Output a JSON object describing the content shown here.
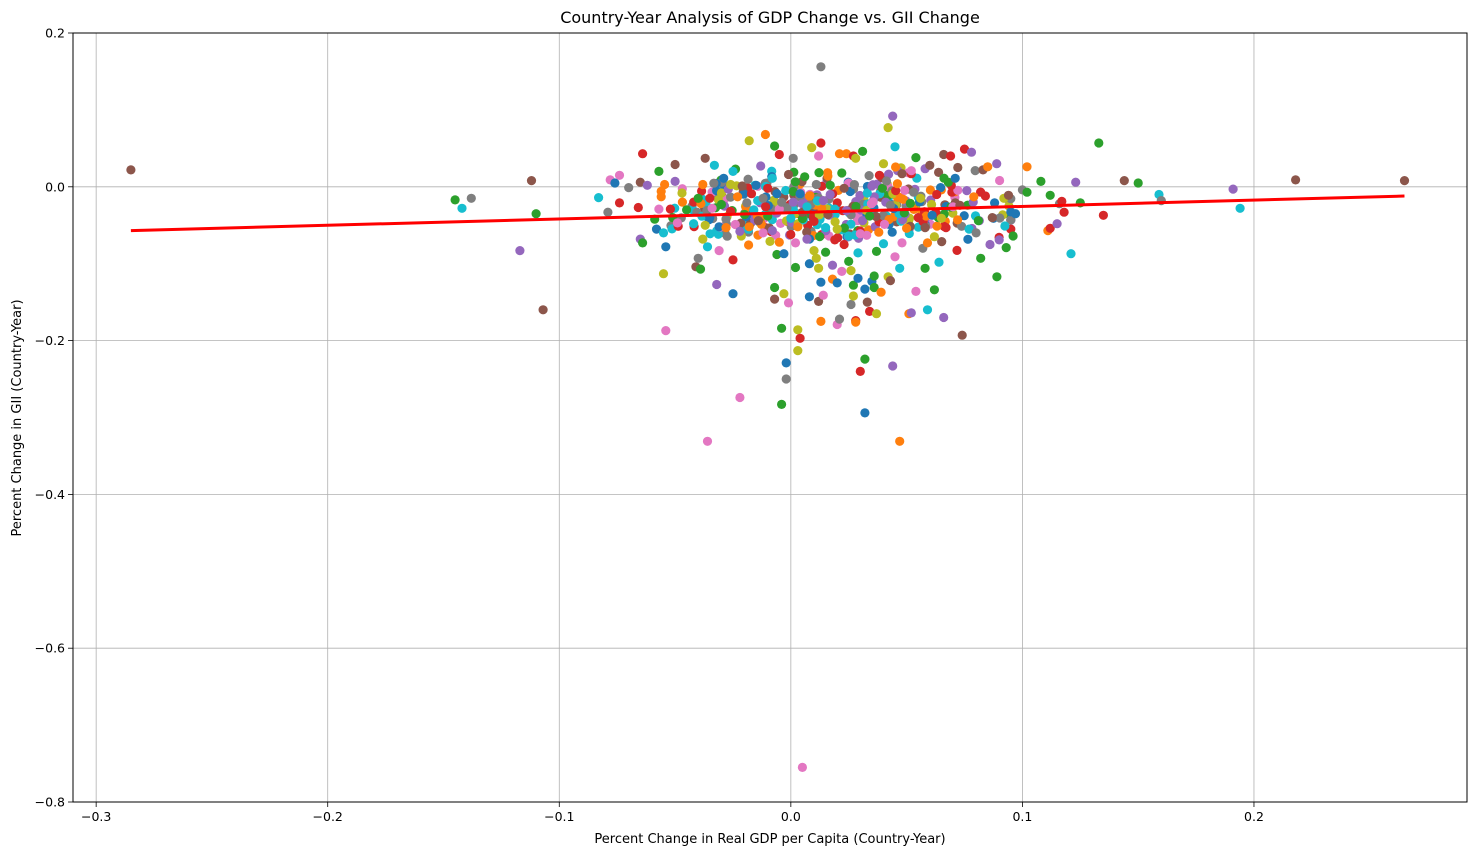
{
  "chart_data": {
    "type": "scatter",
    "title": "Country-Year Analysis of GDP Change vs. GII Change",
    "xlabel": "Percent Change in Real GDP per Capita (Country-Year)",
    "ylabel": "Percent Change in GII (Country-Year)",
    "xlim": [
      -0.31,
      0.292
    ],
    "ylim": [
      -0.8,
      0.2
    ],
    "xticks": [
      -0.3,
      -0.2,
      -0.1,
      0.0,
      0.1,
      0.2
    ],
    "xtick_labels": [
      "−0.3",
      "−0.2",
      "−0.1",
      "0.0",
      "0.1",
      "0.2"
    ],
    "yticks": [
      -0.8,
      -0.6,
      -0.4,
      -0.2,
      0.0,
      0.2
    ],
    "ytick_labels": [
      "−0.8",
      "−0.6",
      "−0.4",
      "−0.2",
      "0.0",
      "0.2"
    ],
    "grid": true,
    "palette": [
      "#1f77b4",
      "#ff7f0e",
      "#2ca02c",
      "#d62728",
      "#9467bd",
      "#8c564b",
      "#e377c2",
      "#7f7f7f",
      "#bcbd22",
      "#17becf"
    ],
    "trend_line": {
      "x": [
        -0.285,
        0.265
      ],
      "y": [
        -0.057,
        -0.012
      ],
      "color": "#ff0000"
    },
    "points": [
      [
        -0.285,
        0.022,
        5
      ],
      [
        -0.145,
        -0.017,
        2
      ],
      [
        -0.142,
        -0.028,
        9
      ],
      [
        -0.138,
        -0.015,
        7
      ],
      [
        -0.117,
        -0.083,
        4
      ],
      [
        -0.112,
        0.008,
        5
      ],
      [
        -0.11,
        -0.035,
        2
      ],
      [
        -0.107,
        -0.16,
        5
      ],
      [
        -0.083,
        -0.014,
        9
      ],
      [
        -0.079,
        -0.033,
        7
      ],
      [
        -0.078,
        0.009,
        6
      ],
      [
        -0.076,
        0.005,
        0
      ],
      [
        -0.074,
        0.015,
        6
      ],
      [
        -0.074,
        -0.021,
        3
      ],
      [
        -0.07,
        -0.001,
        7
      ],
      [
        -0.065,
        -0.068,
        4
      ],
      [
        -0.065,
        0.006,
        5
      ],
      [
        -0.064,
        -0.073,
        2
      ],
      [
        -0.064,
        0.043,
        3
      ],
      [
        -0.062,
        0.002,
        4
      ],
      [
        -0.058,
        -0.055,
        0
      ],
      [
        -0.057,
        -0.029,
        6
      ],
      [
        -0.057,
        0.02,
        2
      ],
      [
        -0.056,
        -0.006,
        1
      ],
      [
        -0.056,
        -0.013,
        1
      ],
      [
        -0.055,
        -0.06,
        9
      ],
      [
        -0.055,
        -0.113,
        8
      ],
      [
        -0.054,
        -0.187,
        6
      ],
      [
        -0.054,
        -0.078,
        0
      ],
      [
        -0.052,
        -0.029,
        3
      ],
      [
        -0.051,
        -0.04,
        2
      ],
      [
        -0.05,
        0.007,
        4
      ],
      [
        -0.05,
        0.029,
        5
      ],
      [
        -0.049,
        -0.047,
        6
      ],
      [
        -0.047,
        -0.008,
        8
      ],
      [
        -0.045,
        -0.03,
        2
      ],
      [
        -0.042,
        -0.048,
        9
      ],
      [
        -0.041,
        -0.104,
        5
      ],
      [
        -0.04,
        -0.093,
        7
      ],
      [
        -0.04,
        -0.015,
        2
      ],
      [
        -0.039,
        -0.107,
        2
      ],
      [
        -0.038,
        -0.068,
        8
      ],
      [
        -0.038,
        0.003,
        1
      ],
      [
        -0.037,
        0.037,
        5
      ],
      [
        -0.037,
        -0.05,
        8
      ],
      [
        -0.036,
        -0.078,
        9
      ],
      [
        -0.036,
        -0.331,
        6
      ],
      [
        -0.035,
        -0.04,
        0
      ],
      [
        -0.035,
        -0.015,
        3
      ],
      [
        -0.034,
        -0.028,
        6
      ],
      [
        -0.033,
        0.028,
        9
      ],
      [
        -0.032,
        -0.127,
        4
      ],
      [
        -0.031,
        -0.083,
        6
      ],
      [
        -0.031,
        -0.052,
        0
      ],
      [
        -0.03,
        -0.023,
        2
      ],
      [
        -0.03,
        -0.008,
        8
      ],
      [
        -0.029,
        0.011,
        0
      ],
      [
        -0.028,
        -0.042,
        7
      ],
      [
        -0.028,
        -0.053,
        1
      ],
      [
        -0.027,
        -0.003,
        4
      ],
      [
        -0.026,
        -0.032,
        3
      ],
      [
        -0.026,
        0.003,
        8
      ],
      [
        -0.025,
        0.02,
        9
      ],
      [
        -0.025,
        -0.139,
        0
      ],
      [
        -0.025,
        -0.095,
        3
      ],
      [
        -0.024,
        -0.049,
        6
      ],
      [
        -0.023,
        -0.013,
        1
      ],
      [
        -0.022,
        -0.274,
        6
      ],
      [
        -0.022,
        -0.058,
        4
      ],
      [
        -0.021,
        0.001,
        5
      ],
      [
        -0.02,
        -0.036,
        2
      ],
      [
        -0.019,
        -0.021,
        7
      ],
      [
        -0.018,
        0.06,
        8
      ],
      [
        -0.018,
        -0.052,
        1
      ],
      [
        -0.017,
        -0.009,
        3
      ],
      [
        -0.016,
        -0.03,
        9
      ],
      [
        -0.015,
        0.002,
        0
      ],
      [
        -0.014,
        -0.044,
        5
      ],
      [
        -0.013,
        0.027,
        4
      ],
      [
        -0.012,
        -0.06,
        6
      ],
      [
        -0.012,
        -0.015,
        7
      ],
      [
        -0.011,
        0.068,
        1
      ],
      [
        -0.01,
        -0.038,
        2
      ],
      [
        -0.01,
        -0.002,
        3
      ],
      [
        -0.009,
        -0.071,
        8
      ],
      [
        -0.008,
        0.011,
        9
      ],
      [
        -0.008,
        -0.057,
        4
      ],
      [
        -0.007,
        -0.131,
        2
      ],
      [
        -0.007,
        -0.146,
        5
      ],
      [
        -0.007,
        0.053,
        2
      ],
      [
        -0.006,
        -0.009,
        0
      ],
      [
        -0.006,
        -0.088,
        2
      ],
      [
        -0.005,
        -0.072,
        1
      ],
      [
        -0.005,
        0.042,
        3
      ],
      [
        -0.005,
        -0.029,
        6
      ],
      [
        -0.004,
        -0.184,
        2
      ],
      [
        -0.004,
        -0.283,
        2
      ],
      [
        -0.004,
        -0.02,
        7
      ],
      [
        -0.003,
        -0.139,
        8
      ],
      [
        -0.003,
        -0.087,
        0
      ],
      [
        -0.002,
        -0.25,
        7
      ],
      [
        -0.002,
        -0.229,
        0
      ],
      [
        -0.001,
        -0.151,
        6
      ],
      [
        -0.001,
        0.016,
        5
      ],
      [
        0.0,
        -0.041,
        9
      ],
      [
        0.0,
        -0.062,
        3
      ],
      [
        0.001,
        -0.02,
        4
      ],
      [
        0.001,
        0.037,
        7
      ],
      [
        0.002,
        -0.105,
        2
      ],
      [
        0.002,
        -0.073,
        6
      ],
      [
        0.003,
        -0.213,
        8
      ],
      [
        0.003,
        -0.186,
        8
      ],
      [
        0.003,
        -0.052,
        1
      ],
      [
        0.004,
        -0.009,
        0
      ],
      [
        0.004,
        -0.197,
        3
      ],
      [
        0.005,
        -0.033,
        5
      ],
      [
        0.005,
        -0.755,
        6
      ],
      [
        0.006,
        0.013,
        2
      ],
      [
        0.007,
        -0.068,
        4
      ],
      [
        0.007,
        -0.026,
        9
      ],
      [
        0.008,
        -0.1,
        0
      ],
      [
        0.008,
        -0.143,
        0
      ],
      [
        0.008,
        -0.012,
        1
      ],
      [
        0.009,
        0.051,
        8
      ],
      [
        0.01,
        -0.083,
        8
      ],
      [
        0.01,
        -0.045,
        3
      ],
      [
        0.011,
        -0.093,
        8
      ],
      [
        0.011,
        0.003,
        7
      ],
      [
        0.012,
        -0.106,
        8
      ],
      [
        0.012,
        -0.149,
        5
      ],
      [
        0.012,
        0.04,
        6
      ],
      [
        0.013,
        -0.124,
        0
      ],
      [
        0.013,
        0.057,
        3
      ],
      [
        0.013,
        -0.175,
        1
      ],
      [
        0.013,
        0.156,
        7
      ],
      [
        0.014,
        -0.141,
        6
      ],
      [
        0.014,
        -0.018,
        4
      ],
      [
        0.015,
        -0.085,
        2
      ],
      [
        0.015,
        -0.053,
        9
      ],
      [
        0.016,
        -0.036,
        5
      ],
      [
        0.016,
        0.014,
        1
      ],
      [
        0.017,
        0.002,
        2
      ],
      [
        0.017,
        -0.01,
        4
      ],
      [
        0.018,
        -0.12,
        1
      ],
      [
        0.018,
        -0.102,
        4
      ],
      [
        0.019,
        -0.069,
        3
      ],
      [
        0.019,
        -0.029,
        9
      ],
      [
        0.02,
        -0.125,
        0
      ],
      [
        0.02,
        -0.179,
        6
      ],
      [
        0.02,
        -0.055,
        8
      ],
      [
        0.021,
        0.043,
        1
      ],
      [
        0.021,
        -0.172,
        7
      ],
      [
        0.022,
        -0.11,
        6
      ],
      [
        0.022,
        0.018,
        2
      ],
      [
        0.023,
        -0.075,
        3
      ],
      [
        0.023,
        -0.002,
        5
      ],
      [
        0.024,
        -0.031,
        4
      ],
      [
        0.024,
        0.043,
        1
      ],
      [
        0.025,
        -0.064,
        9
      ],
      [
        0.025,
        -0.097,
        2
      ],
      [
        0.026,
        -0.153,
        7
      ],
      [
        0.026,
        -0.109,
        8
      ],
      [
        0.027,
        -0.142,
        8
      ],
      [
        0.027,
        0.04,
        3
      ],
      [
        0.027,
        -0.128,
        2
      ],
      [
        0.028,
        -0.174,
        3
      ],
      [
        0.028,
        -0.176,
        1
      ],
      [
        0.028,
        0.037,
        8
      ],
      [
        0.029,
        -0.086,
        9
      ],
      [
        0.029,
        -0.119,
        0
      ],
      [
        0.03,
        -0.24,
        3
      ],
      [
        0.03,
        -0.061,
        6
      ],
      [
        0.031,
        -0.044,
        4
      ],
      [
        0.031,
        0.046,
        2
      ],
      [
        0.032,
        -0.224,
        2
      ],
      [
        0.032,
        -0.133,
        0
      ],
      [
        0.032,
        -0.294,
        0
      ],
      [
        0.033,
        -0.15,
        5
      ],
      [
        0.033,
        -0.008,
        9
      ],
      [
        0.034,
        -0.162,
        3
      ],
      [
        0.034,
        -0.038,
        2
      ],
      [
        0.035,
        -0.123,
        0
      ],
      [
        0.035,
        0.001,
        4
      ],
      [
        0.036,
        -0.116,
        2
      ],
      [
        0.036,
        -0.131,
        2
      ],
      [
        0.037,
        -0.165,
        8
      ],
      [
        0.037,
        -0.084,
        2
      ],
      [
        0.038,
        -0.059,
        1
      ],
      [
        0.039,
        -0.137,
        1
      ],
      [
        0.04,
        0.03,
        8
      ],
      [
        0.04,
        -0.074,
        9
      ],
      [
        0.041,
        -0.02,
        4
      ],
      [
        0.042,
        -0.117,
        8
      ],
      [
        0.042,
        0.077,
        8
      ],
      [
        0.043,
        -0.122,
        5
      ],
      [
        0.043,
        -0.024,
        7
      ],
      [
        0.044,
        -0.233,
        4
      ],
      [
        0.044,
        0.092,
        4
      ],
      [
        0.045,
        -0.091,
        6
      ],
      [
        0.045,
        0.052,
        9
      ],
      [
        0.046,
        0.004,
        1
      ],
      [
        0.047,
        -0.331,
        1
      ],
      [
        0.047,
        -0.106,
        9
      ],
      [
        0.048,
        -0.073,
        6
      ],
      [
        0.048,
        0.017,
        5
      ],
      [
        0.049,
        -0.034,
        2
      ],
      [
        0.05,
        -0.054,
        1
      ],
      [
        0.051,
        -0.165,
        1
      ],
      [
        0.052,
        -0.164,
        4
      ],
      [
        0.052,
        0.021,
        6
      ],
      [
        0.053,
        -0.007,
        7
      ],
      [
        0.054,
        -0.136,
        6
      ],
      [
        0.054,
        0.038,
        2
      ],
      [
        0.055,
        -0.04,
        3
      ],
      [
        0.056,
        -0.015,
        8
      ],
      [
        0.057,
        -0.08,
        7
      ],
      [
        0.058,
        -0.053,
        5
      ],
      [
        0.058,
        -0.106,
        2
      ],
      [
        0.059,
        -0.16,
        9
      ],
      [
        0.059,
        -0.073,
        1
      ],
      [
        0.06,
        0.028,
        5
      ],
      [
        0.061,
        -0.037,
        0
      ],
      [
        0.062,
        -0.134,
        2
      ],
      [
        0.063,
        -0.01,
        3
      ],
      [
        0.064,
        -0.098,
        9
      ],
      [
        0.065,
        -0.041,
        8
      ],
      [
        0.066,
        -0.17,
        4
      ],
      [
        0.066,
        0.042,
        5
      ],
      [
        0.067,
        -0.053,
        3
      ],
      [
        0.068,
        0.006,
        2
      ],
      [
        0.069,
        0.04,
        3
      ],
      [
        0.07,
        -0.026,
        6
      ],
      [
        0.071,
        0.011,
        0
      ],
      [
        0.072,
        -0.043,
        1
      ],
      [
        0.073,
        -0.024,
        5
      ],
      [
        0.074,
        -0.193,
        5
      ],
      [
        0.075,
        0.049,
        3
      ],
      [
        0.076,
        -0.005,
        4
      ],
      [
        0.077,
        -0.055,
        9
      ],
      [
        0.078,
        0.045,
        4
      ],
      [
        0.079,
        -0.013,
        1
      ],
      [
        0.08,
        -0.06,
        7
      ],
      [
        0.081,
        -0.044,
        2
      ],
      [
        0.082,
        -0.093,
        2
      ],
      [
        0.083,
        0.022,
        5
      ],
      [
        0.084,
        -0.012,
        3
      ],
      [
        0.085,
        0.026,
        1
      ],
      [
        0.086,
        -0.075,
        4
      ],
      [
        0.087,
        -0.04,
        5
      ],
      [
        0.088,
        -0.021,
        0
      ],
      [
        0.089,
        -0.117,
        2
      ],
      [
        0.09,
        -0.069,
        4
      ],
      [
        0.092,
        -0.015,
        8
      ],
      [
        0.093,
        -0.079,
        2
      ],
      [
        0.094,
        -0.011,
        5
      ],
      [
        0.096,
        -0.064,
        2
      ],
      [
        0.097,
        -0.035,
        0
      ],
      [
        0.1,
        -0.004,
        7
      ],
      [
        0.102,
        -0.007,
        2
      ],
      [
        0.102,
        0.026,
        1
      ],
      [
        0.108,
        0.007,
        2
      ],
      [
        0.111,
        -0.057,
        1
      ],
      [
        0.112,
        -0.054,
        3
      ],
      [
        0.112,
        -0.011,
        2
      ],
      [
        0.115,
        -0.048,
        4
      ],
      [
        0.116,
        -0.022,
        7
      ],
      [
        0.117,
        -0.019,
        3
      ],
      [
        0.118,
        -0.033,
        3
      ],
      [
        0.121,
        -0.087,
        9
      ],
      [
        0.123,
        0.006,
        4
      ],
      [
        0.125,
        -0.021,
        2
      ],
      [
        0.133,
        0.057,
        2
      ],
      [
        0.135,
        -0.037,
        3
      ],
      [
        0.144,
        0.008,
        5
      ],
      [
        0.15,
        0.005,
        2
      ],
      [
        0.159,
        -0.01,
        9
      ],
      [
        0.16,
        -0.018,
        7
      ],
      [
        0.191,
        -0.003,
        4
      ],
      [
        0.194,
        -0.028,
        9
      ],
      [
        0.218,
        0.009,
        5
      ],
      [
        0.265,
        0.008,
        5
      ]
    ],
    "cluster": {
      "seed": 1234,
      "count": 380,
      "x_mean": 0.02,
      "x_sd": 0.035,
      "y_mean": -0.025,
      "y_sd": 0.022
    }
  }
}
